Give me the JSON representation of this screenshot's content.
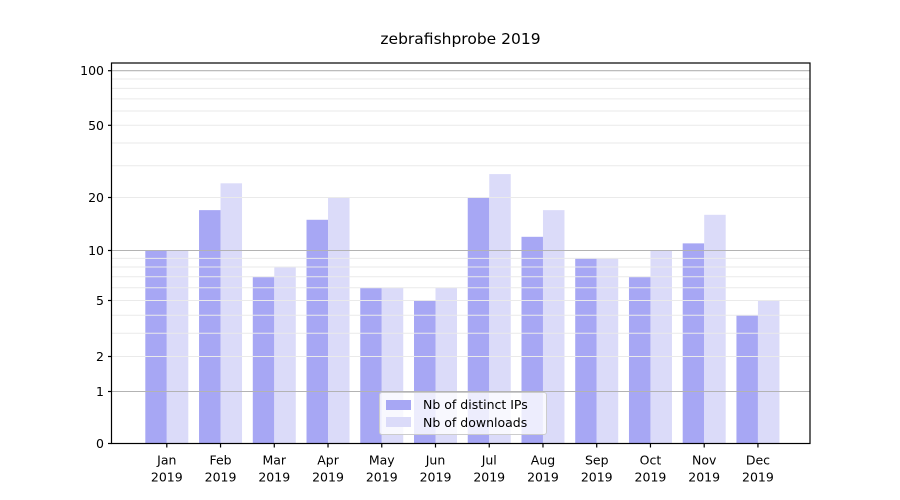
{
  "window": {
    "background": "#ffffff"
  },
  "chart_data": {
    "type": "bar",
    "title": "zebrafishprobe 2019",
    "categories": [
      "Jan",
      "Feb",
      "Mar",
      "Apr",
      "May",
      "Jun",
      "Jul",
      "Aug",
      "Sep",
      "Oct",
      "Nov",
      "Dec"
    ],
    "x_tick_second_line": "2019",
    "series": [
      {
        "name": "Nb of distinct IPs",
        "color": "#a7a7f4",
        "values": [
          10,
          17,
          7,
          15,
          6,
          5,
          20,
          12,
          9,
          7,
          11,
          4
        ]
      },
      {
        "name": "Nb of downloads",
        "color": "#dbdbf9",
        "values": [
          10,
          24,
          8,
          20,
          6,
          6,
          27,
          17,
          9,
          10,
          16,
          5
        ]
      }
    ],
    "xlabel": "",
    "ylabel": "",
    "y_axis": {
      "scale": "log-like (symlog), linear segment between 0 and 1",
      "labeled_ticks": [
        100,
        50,
        20,
        10,
        5,
        2,
        1,
        0
      ],
      "major_gridline_values": [
        1,
        10,
        100
      ],
      "minor_gridline_values": [
        2,
        3,
        4,
        5,
        6,
        7,
        8,
        9,
        20,
        30,
        40,
        50,
        60,
        70,
        80,
        90
      ],
      "ylim": [
        0,
        115
      ]
    },
    "grid": "on, drawn above bars",
    "legend": {
      "position": "lower center",
      "entries": [
        "Nb of distinct IPs",
        "Nb of downloads"
      ]
    },
    "colors": {
      "axis_spine": "#000000",
      "tick_text": "#000000",
      "major_grid": "#b3b3b3",
      "minor_grid": "#eaeaea",
      "legend_border": "#cccccc",
      "legend_background": "rgba(255,255,255,0.8)"
    }
  }
}
